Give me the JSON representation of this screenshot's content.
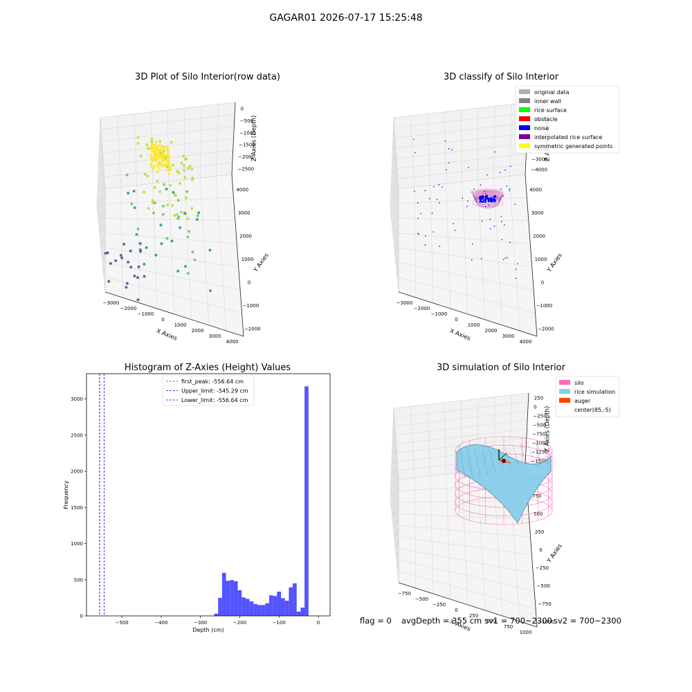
{
  "figure": {
    "suptitle": "GAGAR01 2026-07-17 15:25:48",
    "status": {
      "flag": "flag = 0",
      "avg_depth": "avgDepth = 355 cm",
      "sv1": "sv1 = 700~2300",
      "sv2": "sv2 = 700~2300"
    }
  },
  "chart_data": [
    {
      "type": "scatter",
      "title": "3D Plot of Silo Interior(row data)",
      "xlabel": "X Axies",
      "ylabel": "Y Axies",
      "zlabel": "Z Axies (Depth)",
      "x_ticks": [
        "−3000",
        "−2000",
        "−1000",
        "0",
        "1000",
        "2000",
        "3000",
        "4000"
      ],
      "y_ticks": [
        "−2000",
        "−1000",
        "0",
        "1000",
        "2000",
        "3000",
        "4000"
      ],
      "z_ticks": [
        "0",
        "−500",
        "−1000",
        "−1500",
        "−2000",
        "−2500"
      ],
      "colormap": "viridis",
      "xlim": [
        -3300,
        4500
      ],
      "ylim": [
        -2100,
        4300
      ],
      "zlim": [
        -2700,
        0
      ]
    },
    {
      "type": "scatter",
      "title": "3D classify of Silo Interior",
      "xlabel": "X Axies",
      "ylabel": "Y Axies",
      "zlabel": "Z Axies (Depth)",
      "x_ticks": [
        "−3000",
        "−2000",
        "−1000",
        "0",
        "1000",
        "2000",
        "3000",
        "4000"
      ],
      "y_ticks": [
        "−2000",
        "−1000",
        "0",
        "1000",
        "2000",
        "3000",
        "4000"
      ],
      "z_ticks": [
        "2000",
        "1000",
        "0",
        "−1000",
        "−2000",
        "−3000",
        "−4000"
      ],
      "legend_position": "top-right",
      "legend": [
        {
          "label": "original data",
          "color": "#b0b0b0"
        },
        {
          "label": "inner wall",
          "color": "#808080"
        },
        {
          "label": "rice surface",
          "color": "#00ff00"
        },
        {
          "label": "obstacle",
          "color": "#ff0000"
        },
        {
          "label": "noise",
          "color": "#0000ff"
        },
        {
          "label": "interpolated rice surface",
          "color": "#800080"
        },
        {
          "label": "symmetric generated points",
          "color": "#ffff00"
        }
      ]
    },
    {
      "type": "bar",
      "title": "Histogram of Z-Axies (Height) Values",
      "xlabel": "Depth (cm)",
      "ylabel": "Frequency",
      "xlim": [
        -590,
        30
      ],
      "ylim": [
        0,
        3350
      ],
      "x_ticks": [
        -500,
        -400,
        -300,
        -200,
        -100,
        0
      ],
      "x_tick_labels": [
        "−500",
        "−400",
        "−300",
        "−200",
        "−100",
        "0"
      ],
      "y_ticks": [
        0,
        500,
        1000,
        1500,
        2000,
        2500,
        3000
      ],
      "bar_color": "#4b4bff",
      "bins": [
        {
          "x0": -265,
          "x1": -255,
          "v": 30
        },
        {
          "x0": -255,
          "x1": -245,
          "v": 250
        },
        {
          "x0": -245,
          "x1": -235,
          "v": 595
        },
        {
          "x0": -235,
          "x1": -225,
          "v": 485
        },
        {
          "x0": -225,
          "x1": -215,
          "v": 495
        },
        {
          "x0": -215,
          "x1": -205,
          "v": 480
        },
        {
          "x0": -205,
          "x1": -195,
          "v": 355
        },
        {
          "x0": -195,
          "x1": -185,
          "v": 255
        },
        {
          "x0": -185,
          "x1": -175,
          "v": 235
        },
        {
          "x0": -175,
          "x1": -165,
          "v": 200
        },
        {
          "x0": -165,
          "x1": -155,
          "v": 165
        },
        {
          "x0": -155,
          "x1": -145,
          "v": 150
        },
        {
          "x0": -145,
          "x1": -135,
          "v": 150
        },
        {
          "x0": -135,
          "x1": -125,
          "v": 175
        },
        {
          "x0": -125,
          "x1": -115,
          "v": 285
        },
        {
          "x0": -115,
          "x1": -105,
          "v": 275
        },
        {
          "x0": -105,
          "x1": -95,
          "v": 335
        },
        {
          "x0": -95,
          "x1": -85,
          "v": 245
        },
        {
          "x0": -85,
          "x1": -75,
          "v": 210
        },
        {
          "x0": -75,
          "x1": -65,
          "v": 395
        },
        {
          "x0": -65,
          "x1": -55,
          "v": 450
        },
        {
          "x0": -55,
          "x1": -45,
          "v": 60
        },
        {
          "x0": -45,
          "x1": -35,
          "v": 115
        },
        {
          "x0": -35,
          "x1": -25,
          "v": 3175
        }
      ],
      "vlines": [
        {
          "x": -556.64,
          "color": "#ff0000",
          "label": "first_peak: -556.64 cm"
        },
        {
          "x": -545.29,
          "color": "#0000ff",
          "label": "Upper_limit: -545.29 cm"
        },
        {
          "x": -556.64,
          "color": "#0000ff",
          "label": "Lower_limit: -556.64 cm"
        }
      ],
      "legend_position": "top-center"
    },
    {
      "type": "surface",
      "title": "3D simulation of Silo Interior",
      "xlabel": "X Axies",
      "ylabel": "Y Axies",
      "zlabel": "Z Axies (Depth)",
      "x_ticks": [
        "−750",
        "−500",
        "−250",
        "0",
        "250",
        "500",
        "750",
        "1000"
      ],
      "y_ticks": [
        "−1000",
        "−750",
        "−500",
        "−250",
        "0",
        "250",
        "500",
        "750",
        "1000"
      ],
      "z_ticks": [
        "250",
        "0",
        "−250",
        "−500",
        "−750",
        "−1000",
        "−1250",
        "−1500"
      ],
      "legend_position": "top-right",
      "legend": [
        {
          "label": "silo",
          "color": "#ff69b4"
        },
        {
          "label": "rice simulation",
          "color": "#87ceeb"
        },
        {
          "label": "auger",
          "color": "#ff4500"
        },
        {
          "label": "center(85,-5)",
          "color": "#ffffff"
        }
      ]
    }
  ]
}
